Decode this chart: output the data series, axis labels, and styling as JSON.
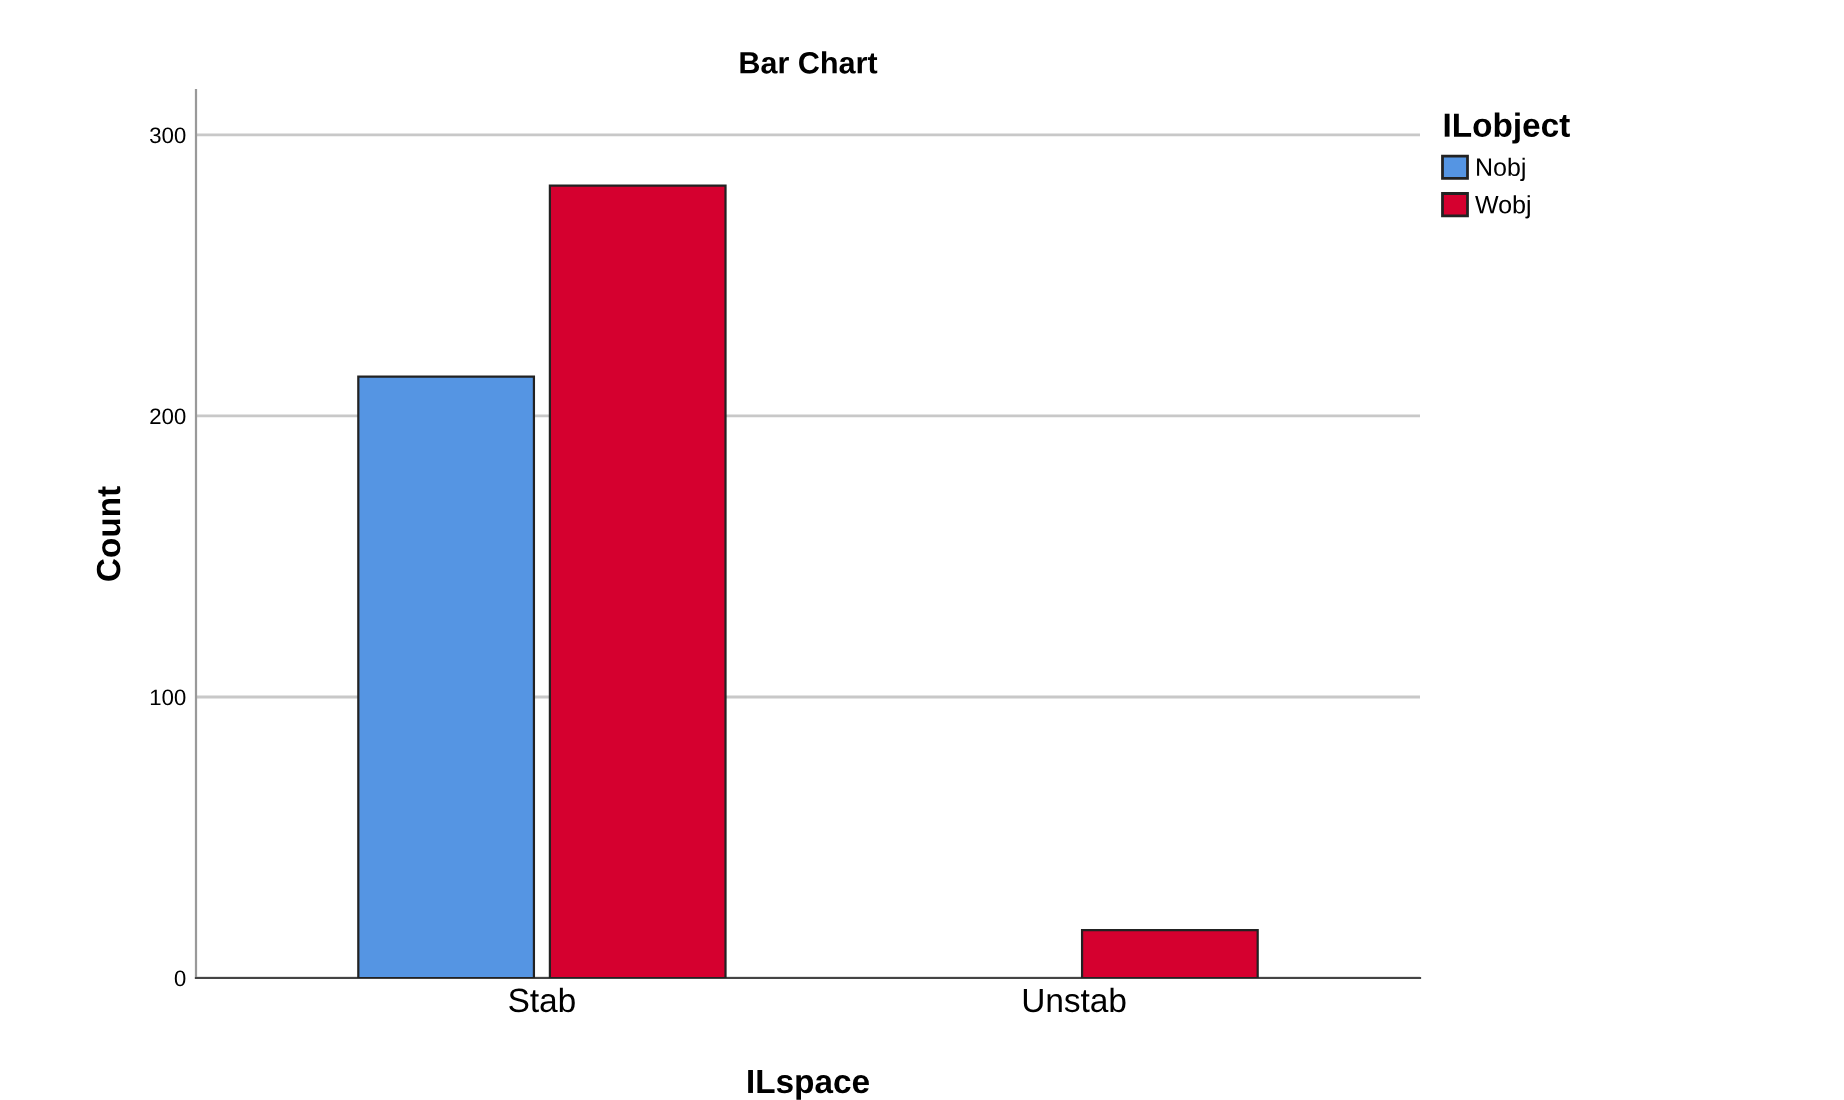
{
  "chart_data": {
    "type": "bar",
    "title": "Bar Chart",
    "xlabel": "ILspace",
    "ylabel": "Count",
    "legend_title": "ILobject",
    "categories": [
      "Stab",
      "Unstab"
    ],
    "series": [
      {
        "name": "Nobj",
        "color": "#5595e3",
        "values": [
          214,
          null
        ]
      },
      {
        "name": "Wobj",
        "color": "#d5002f",
        "values": [
          282,
          17
        ]
      }
    ],
    "ylim": [
      0,
      316
    ],
    "yticks": [
      0,
      100,
      200,
      300
    ],
    "grid": "y",
    "legend": "top right"
  }
}
